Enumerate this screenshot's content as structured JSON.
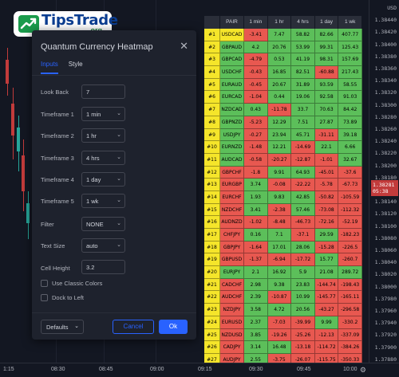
{
  "logo": {
    "brand": "TipsTrade",
    "suffix": ".org"
  },
  "dialog": {
    "title": "Quantum Currency Heatmap",
    "tabs": [
      {
        "label": "Inputs",
        "active": true
      },
      {
        "label": "Style",
        "active": false
      }
    ],
    "fields": {
      "look_back": {
        "label": "Look Back",
        "value": "7"
      },
      "timeframe1": {
        "label": "Timeframe 1",
        "value": "1 min"
      },
      "timeframe2": {
        "label": "Timeframe 2",
        "value": "1 hr"
      },
      "timeframe3": {
        "label": "Timeframe 3",
        "value": "4 hrs"
      },
      "timeframe4": {
        "label": "Timeframe 4",
        "value": "1 day"
      },
      "timeframe5": {
        "label": "Timeframe 5",
        "value": "1 wk"
      },
      "filter": {
        "label": "Filter",
        "value": "NONE"
      },
      "text_size": {
        "label": "Text Size",
        "value": "auto"
      },
      "cell_height": {
        "label": "Cell Height",
        "value": "3.2"
      }
    },
    "checkboxes": {
      "classic": {
        "label": "Use Classic Colors",
        "checked": false
      },
      "dock": {
        "label": "Dock to Left",
        "checked": false
      }
    },
    "buttons": {
      "defaults": "Defaults",
      "cancel": "Cancel",
      "ok": "Ok"
    }
  },
  "heatmap": {
    "headers": [
      "PAIR",
      "1 min",
      "1 hr",
      "4 hrs",
      "1 day",
      "1 wk"
    ],
    "rows": [
      {
        "rank": "#1",
        "pair": "USDCAD",
        "vals": [
          "-3.41",
          "7.47",
          "58.82",
          "82.66",
          "407.77"
        ]
      },
      {
        "rank": "#2",
        "pair": "GBPAUD",
        "vals": [
          "4.2",
          "20.76",
          "53.99",
          "99.31",
          "125.43"
        ]
      },
      {
        "rank": "#3",
        "pair": "GBPCAD",
        "vals": [
          "-4.79",
          "0.53",
          "41.19",
          "98.31",
          "157.69"
        ]
      },
      {
        "rank": "#4",
        "pair": "USDCHF",
        "vals": [
          "-0.43",
          "16.85",
          "82.51",
          "-60.88",
          "217.43"
        ]
      },
      {
        "rank": "#5",
        "pair": "EURAUD",
        "vals": [
          "-0.45",
          "20.67",
          "31.89",
          "93.59",
          "58.55"
        ]
      },
      {
        "rank": "#6",
        "pair": "EURCAD",
        "vals": [
          "-1.04",
          "0.44",
          "19.06",
          "92.58",
          "91.03"
        ]
      },
      {
        "rank": "#7",
        "pair": "NZDCAD",
        "vals": [
          "0.43",
          "-11.78",
          "33.7",
          "70.63",
          "84.42"
        ]
      },
      {
        "rank": "#8",
        "pair": "GBPNZD",
        "vals": [
          "-5.23",
          "12.29",
          "7.51",
          "27.87",
          "73.89"
        ]
      },
      {
        "rank": "#9",
        "pair": "USDJPY",
        "vals": [
          "-0.27",
          "23.94",
          "45.71",
          "-31.11",
          "39.18"
        ]
      },
      {
        "rank": "#10",
        "pair": "EURNZD",
        "vals": [
          "-1.48",
          "12.21",
          "-14.69",
          "22.1",
          "6.66"
        ]
      },
      {
        "rank": "#11",
        "pair": "AUDCAD",
        "vals": [
          "-0.58",
          "-20.27",
          "-12.87",
          "-1.01",
          "32.67"
        ]
      },
      {
        "rank": "#12",
        "pair": "GBPCHF",
        "vals": [
          "-1.8",
          "9.91",
          "64.93",
          "-45.01",
          "-37.6"
        ]
      },
      {
        "rank": "#13",
        "pair": "EURGBP",
        "vals": [
          "3.74",
          "-0.08",
          "-22.22",
          "-5.78",
          "-67.73"
        ]
      },
      {
        "rank": "#14",
        "pair": "EURCHF",
        "vals": [
          "1.93",
          "9.83",
          "42.85",
          "-50.82",
          "-105.59"
        ]
      },
      {
        "rank": "#15",
        "pair": "NZDCHF",
        "vals": [
          "3.41",
          "-2.38",
          "57.46",
          "-73.08",
          "-112.32"
        ]
      },
      {
        "rank": "#16",
        "pair": "AUDNZD",
        "vals": [
          "-1.02",
          "-8.48",
          "-46.73",
          "-72.16",
          "-52.19"
        ]
      },
      {
        "rank": "#17",
        "pair": "CHFJPY",
        "vals": [
          "0.16",
          "7.1",
          "-37.1",
          "29.59",
          "-182.23"
        ]
      },
      {
        "rank": "#18",
        "pair": "GBPJPY",
        "vals": [
          "-1.64",
          "17.01",
          "28.06",
          "-15.28",
          "-226.5"
        ]
      },
      {
        "rank": "#19",
        "pair": "GBPUSD",
        "vals": [
          "-1.37",
          "-6.94",
          "-17.72",
          "15.77",
          "-260.7"
        ]
      },
      {
        "rank": "#20",
        "pair": "EURJPY",
        "vals": [
          "2.1",
          "16.92",
          "5.9",
          "21.08",
          "289.72"
        ]
      },
      {
        "rank": "#21",
        "pair": "CADCHF",
        "vals": [
          "2.98",
          "9.38",
          "23.83",
          "-144.74",
          "-198.43"
        ]
      },
      {
        "rank": "#22",
        "pair": "AUDCHF",
        "vals": [
          "2.39",
          "-10.87",
          "10.99",
          "-145.77",
          "-165.11"
        ]
      },
      {
        "rank": "#23",
        "pair": "NZDJPY",
        "vals": [
          "3.58",
          "4.72",
          "20.56",
          "-43.27",
          "-296.58"
        ]
      },
      {
        "rank": "#24",
        "pair": "EURUSD",
        "vals": [
          "2.37",
          "-7.03",
          "-39.99",
          "9.99",
          "-330.2"
        ]
      },
      {
        "rank": "#25",
        "pair": "NZDUSD",
        "vals": [
          "3.85",
          "-19.26",
          "-25.26",
          "-12.13",
          "-337.09"
        ]
      },
      {
        "rank": "#26",
        "pair": "CADJPY",
        "vals": [
          "3.14",
          "16.48",
          "-13.18",
          "-114.72",
          "-384.26"
        ]
      },
      {
        "rank": "#27",
        "pair": "AUDJPY",
        "vals": [
          "2.55",
          "-3.75",
          "-26.07",
          "-115.75",
          "-350.33"
        ]
      },
      {
        "rank": "#28",
        "pair": "AUDUSD",
        "vals": [
          "2.83",
          "-27.76",
          "-72.11",
          "-84.38",
          "-391.04"
        ]
      }
    ]
  },
  "price_scale": {
    "labels": [
      "USD",
      "1.38440",
      "1.38420",
      "1.38400",
      "1.38380",
      "1.38360",
      "1.38340",
      "1.38320",
      "1.38300",
      "1.38280",
      "1.38260",
      "1.38240",
      "1.38220",
      "1.38200",
      "1.38180",
      "1.38160",
      "1.38140",
      "1.38120",
      "1.38100",
      "1.38080",
      "1.38060",
      "1.38040",
      "1.38020",
      "1.38000",
      "1.37980",
      "1.37960",
      "1.37940",
      "1.37920",
      "1.37900",
      "1.37880"
    ],
    "current_tag": [
      "1.38281",
      "05:38"
    ]
  },
  "time_scale": {
    "labels": [
      "1:15",
      "08:30",
      "08:45",
      "09:00",
      "09:15",
      "09:30",
      "09:45",
      "10:00"
    ]
  },
  "colors": {
    "positive": "#5cbf5a",
    "negative": "#e85850",
    "rank": "#f5e52a",
    "accent": "#2962ff"
  }
}
